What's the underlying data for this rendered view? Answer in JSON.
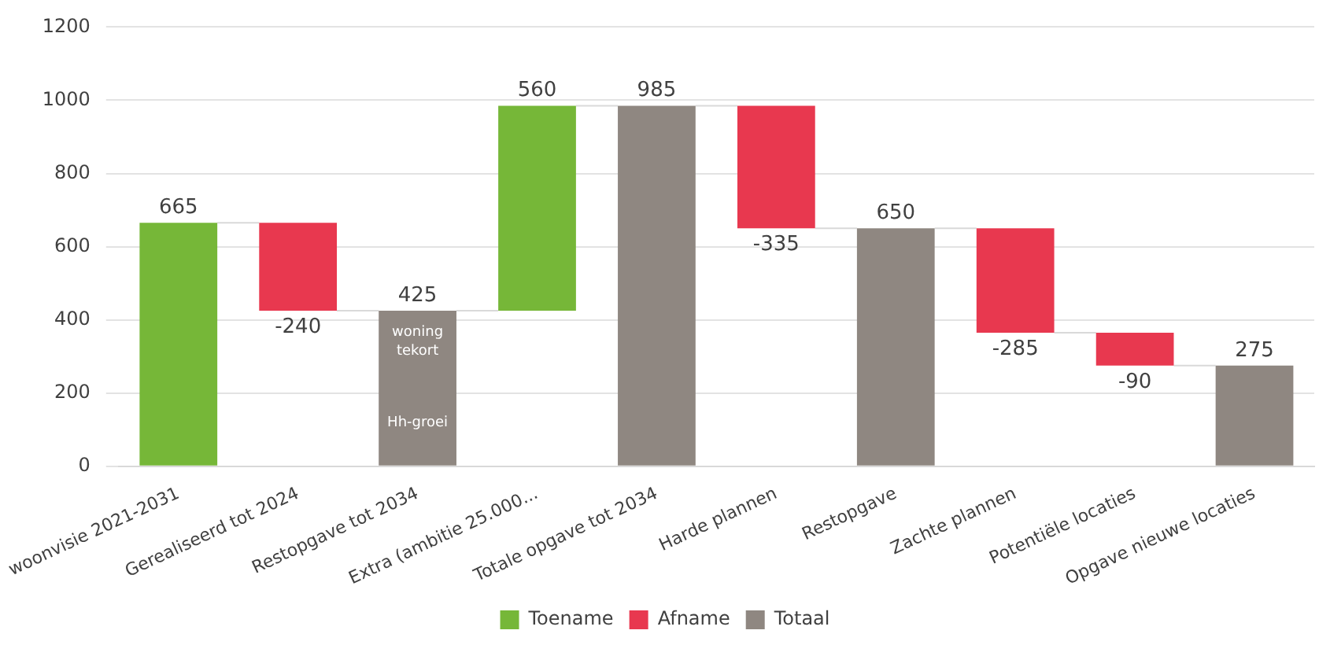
{
  "chart_data": {
    "type": "bar",
    "categories": [
      "woonvisie 2021-2031",
      "Gerealiseerd tot 2024",
      "Restopgave tot 2034",
      "Extra (ambitie 25.000...",
      "Totale opgave tot 2034",
      "Harde plannen",
      "Restopgave",
      "Zachte plannen",
      "Potentiële locaties",
      "Opgave nieuwe locaties"
    ],
    "series": [
      {
        "name": "Toename",
        "color": "#76b738",
        "values": [
          665,
          null,
          null,
          560,
          null,
          null,
          null,
          null,
          null,
          null
        ],
        "base": [
          0,
          null,
          null,
          425,
          null,
          null,
          null,
          null,
          null,
          null
        ]
      },
      {
        "name": "Afname",
        "color": "#e8384f",
        "values": [
          null,
          -240,
          null,
          null,
          null,
          -335,
          null,
          -285,
          -90,
          null
        ],
        "base": [
          null,
          665,
          null,
          null,
          null,
          985,
          null,
          650,
          365,
          null
        ]
      },
      {
        "name": "Totaal",
        "color": "#8f8781",
        "values": [
          null,
          null,
          425,
          null,
          985,
          null,
          650,
          null,
          null,
          275
        ],
        "base": [
          null,
          null,
          0,
          null,
          0,
          null,
          0,
          null,
          null,
          0
        ]
      }
    ],
    "ylim": [
      0,
      1200
    ],
    "yticks": [
      0,
      200,
      400,
      600,
      800,
      1000,
      1200
    ],
    "grid": "y",
    "legend": "bottom",
    "data_labels": true,
    "annotations": [
      "woning tekort",
      "Hh-groei"
    ]
  }
}
